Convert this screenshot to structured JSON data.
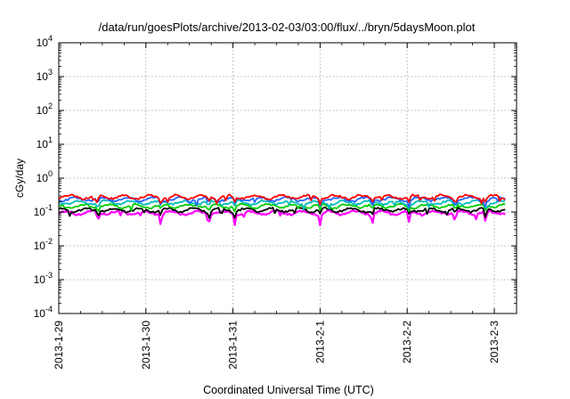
{
  "chart_data": {
    "type": "line",
    "title": "/data/run/goesPlots/archive/2013-02-03/03:00/flux/../bryn/5daysMoon.plot",
    "xlabel": "Coordinated Universal Time (UTC)",
    "ylabel": "cGy/day",
    "yscale": "log",
    "ylim": [
      0.0001,
      10000
    ],
    "xlim": [
      "2013-01-29 00:00",
      "2013-02-03 03:00"
    ],
    "grid": true,
    "x_ticks": [
      "2013-1-29",
      "2013-1-30",
      "2013-1-31",
      "2013-2-1",
      "2013-2-2",
      "2013-2-3"
    ],
    "y_ticks": [
      {
        "value": 0.0001,
        "mantissa": "10",
        "exp": "-4"
      },
      {
        "value": 0.001,
        "mantissa": "10",
        "exp": "-3"
      },
      {
        "value": 0.01,
        "mantissa": "10",
        "exp": "-2"
      },
      {
        "value": 0.1,
        "mantissa": "10",
        "exp": "-1"
      },
      {
        "value": 1,
        "mantissa": "10",
        "exp": "0"
      },
      {
        "value": 10,
        "mantissa": "10",
        "exp": "1"
      },
      {
        "value": 100,
        "mantissa": "10",
        "exp": "2"
      },
      {
        "value": 1000,
        "mantissa": "10",
        "exp": "3"
      },
      {
        "value": 10000,
        "mantissa": "10",
        "exp": "4"
      }
    ],
    "series": [
      {
        "color": "#ff00ff",
        "base": 0.095,
        "dip_depth": 0.55
      },
      {
        "color": "#000000",
        "base": 0.115,
        "dip_depth": 0.3
      },
      {
        "color": "#00cc00",
        "base": 0.15,
        "dip_depth": 0.3
      },
      {
        "color": "#00bbbb",
        "base": 0.19,
        "dip_depth": 0.3
      },
      {
        "color": "#2266ff",
        "base": 0.24,
        "dip_depth": 0.35
      },
      {
        "color": "#ff0000",
        "base": 0.28,
        "dip_depth": 0.3
      }
    ],
    "dips_days": [
      0.45,
      1.17,
      1.72,
      2.02,
      3.0,
      3.6,
      4.02,
      4.55,
      4.9
    ],
    "data_hours": 123
  }
}
